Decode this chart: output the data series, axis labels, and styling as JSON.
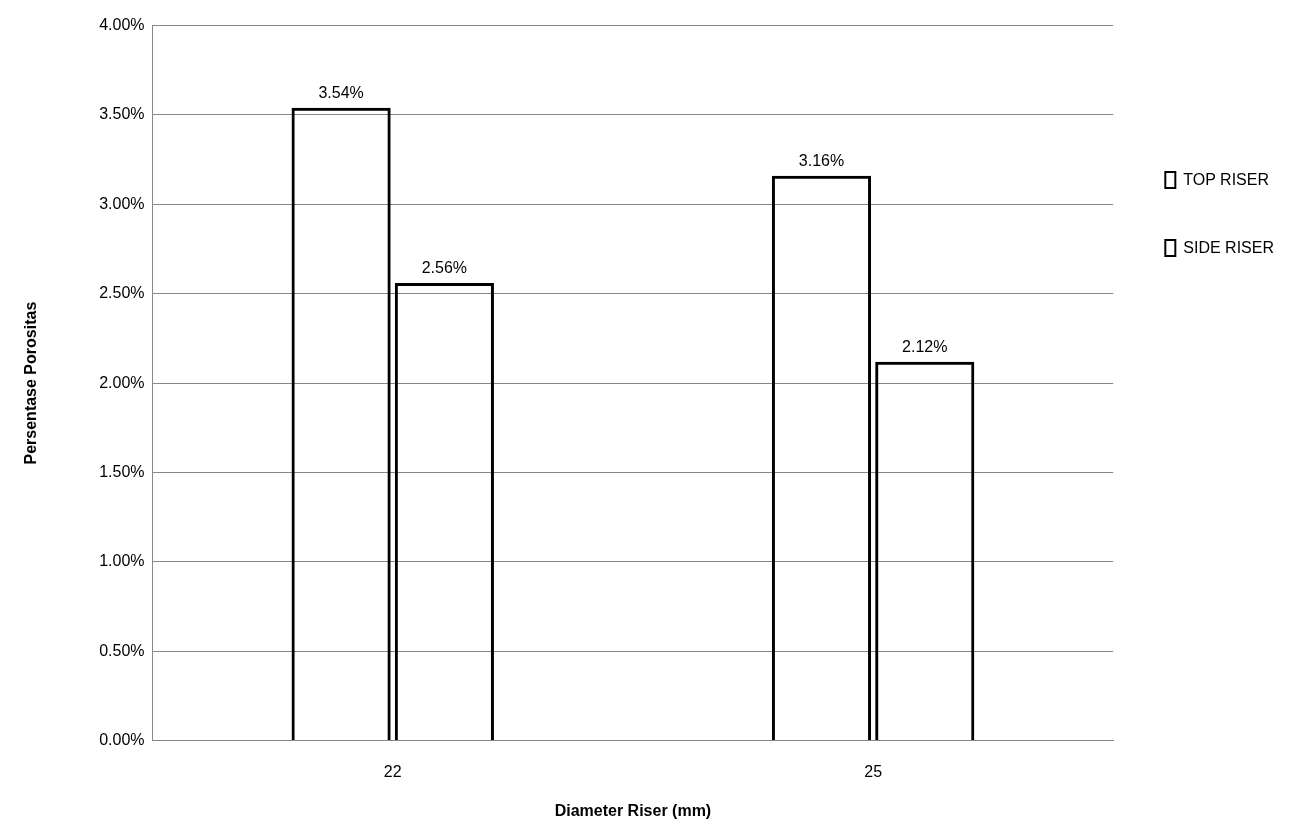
{
  "chart_data": {
    "type": "bar",
    "xlabel": "Diameter Riser (mm)",
    "ylabel": "Persentase Porositas",
    "categories": [
      "22",
      "25"
    ],
    "series": [
      {
        "name": "TOP RISER",
        "color": "#000000",
        "values": [
          3.54,
          3.16
        ],
        "value_labels": [
          "3.54%",
          "3.16%"
        ]
      },
      {
        "name": "SIDE RISER",
        "color": "#000000",
        "values": [
          2.56,
          2.12
        ],
        "value_labels": [
          "2.56%",
          "2.12%"
        ]
      }
    ],
    "ylim": [
      0,
      4
    ],
    "yticks": [
      {
        "value": 0,
        "label": "0.00%"
      },
      {
        "value": 0.5,
        "label": "0.50%"
      },
      {
        "value": 1,
        "label": "1.00%"
      },
      {
        "value": 1.5,
        "label": "1.50%"
      },
      {
        "value": 2,
        "label": "2.00%"
      },
      {
        "value": 2.5,
        "label": "2.50%"
      },
      {
        "value": 3,
        "label": "3.00%"
      },
      {
        "value": 3.5,
        "label": "3.50%"
      },
      {
        "value": 4,
        "label": "4.00%"
      }
    ],
    "grid": "y",
    "legend": "right"
  }
}
